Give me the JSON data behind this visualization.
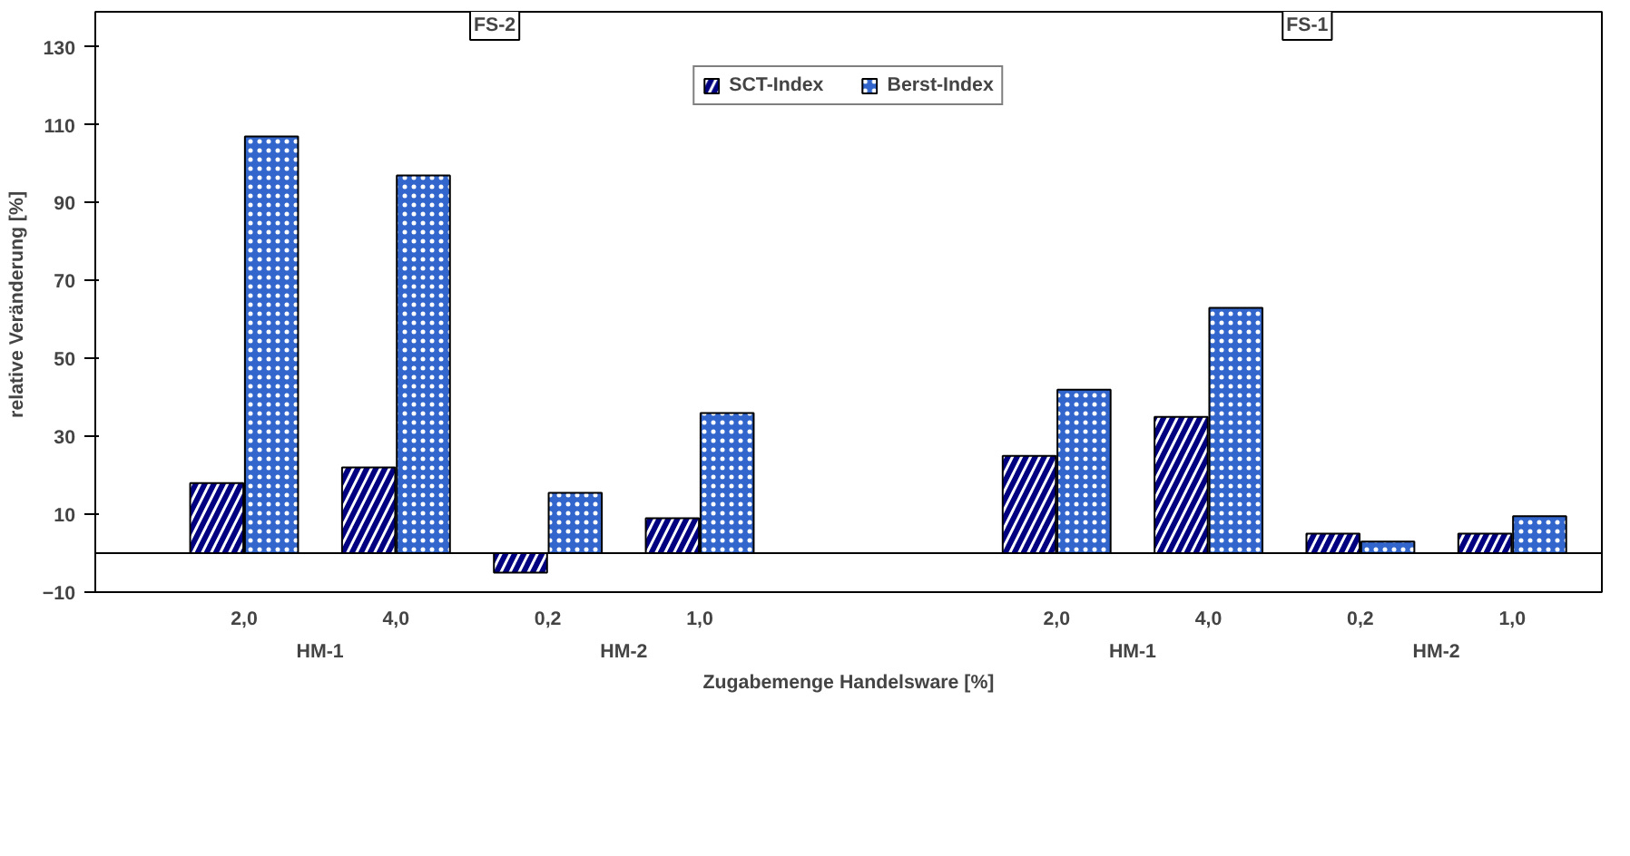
{
  "chart_data": {
    "type": "bar",
    "categories": [
      "2,0",
      "4,0",
      "0,2",
      "1,0",
      "2,0",
      "4,0",
      "0,2",
      "1,0"
    ],
    "xlabel": "Zugabemenge Handelsware [%]",
    "ylabel": "relative Veränderung  [%]",
    "annotations": [
      "FS-2",
      "FS-1",
      "HM-1",
      "HM-2",
      "HM-1",
      "HM-2"
    ],
    "series": [
      {
        "name": "SCT-Index",
        "color": "#000080",
        "values": [
          18,
          22,
          -5,
          9,
          25,
          35,
          5,
          5
        ]
      },
      {
        "name": "Berst-Index",
        "color": "#3366cc",
        "values": [
          107,
          97,
          15.5,
          36,
          42,
          63,
          3,
          9.5
        ]
      }
    ],
    "ylim": [
      -10,
      139
    ],
    "yticks": [
      -10,
      10,
      30,
      50,
      70,
      90,
      110,
      130
    ],
    "grid": false,
    "legend": "top"
  }
}
